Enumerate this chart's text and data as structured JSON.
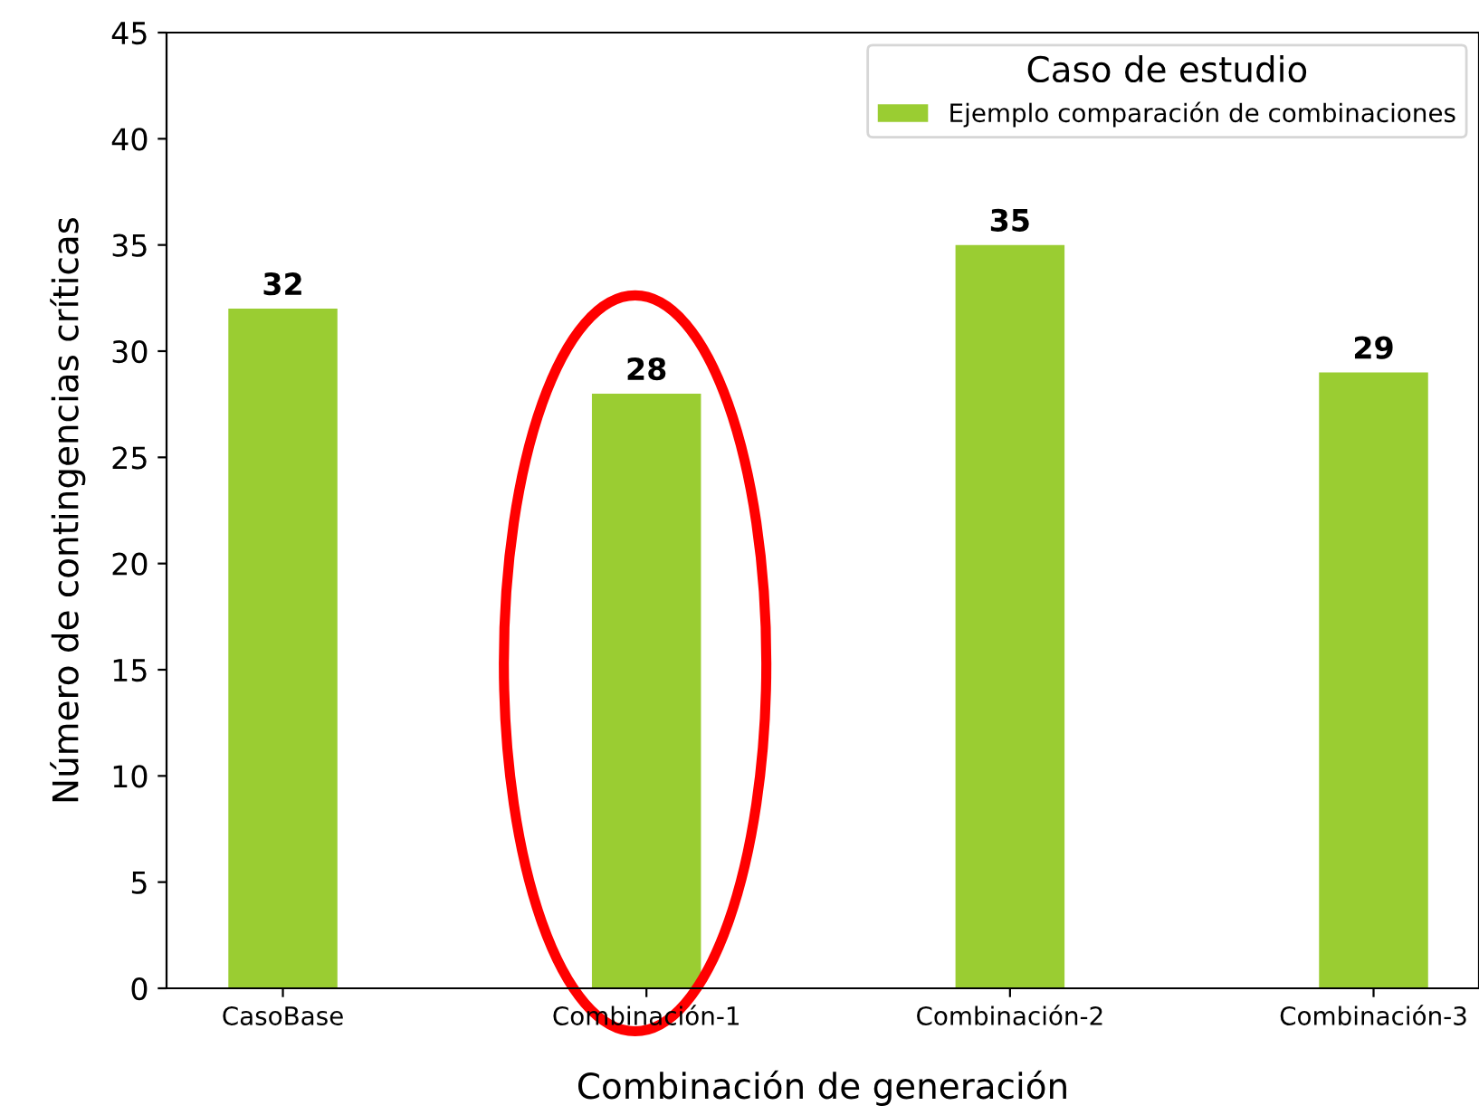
{
  "chart_data": {
    "type": "bar",
    "xlabel": "Combinación de generación",
    "ylabel": "Número de contingencias críticas",
    "legend_title": "Caso de estudio",
    "categories": [
      "CasoBase",
      "Combinación-1",
      "Combinación-2",
      "Combinación-3"
    ],
    "series": [
      {
        "name": "Ejemplo comparación de combinaciones",
        "color": "#9acd32",
        "values": [
          32,
          28,
          35,
          29
        ]
      }
    ],
    "ylim": [
      0,
      45
    ],
    "yticks": [
      0,
      5,
      10,
      15,
      20,
      25,
      30,
      35,
      40,
      45
    ],
    "data_labels": true,
    "legend": "top right",
    "grid": false
  }
}
